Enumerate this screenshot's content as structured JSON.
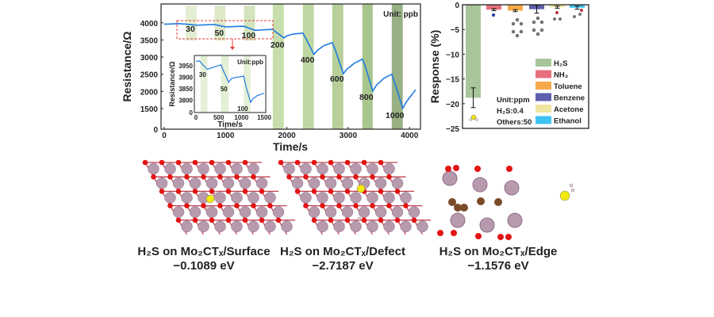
{
  "chart_data": [
    {
      "type": "line",
      "xlabel": "Time/s",
      "ylabel": "Resistance/Ω",
      "xlim": [
        0,
        4100
      ],
      "ylim": [
        0,
        4530
      ],
      "y_axis_break": [
        0,
        1500
      ],
      "xticks": [
        "0",
        "1000",
        "2000",
        "3000",
        "4000"
      ],
      "yticks": [
        "0",
        "1500",
        "2000",
        "2500",
        "3000",
        "3500",
        "4000"
      ],
      "unit_label": "Unit: ppb",
      "series": [
        {
          "name": "Resistance",
          "color": "#1e7be0",
          "x": [
            0,
            60,
            230,
            350,
            530,
            820,
            1000,
            1300,
            1480,
            1770,
            1800,
            1950,
            2000,
            2100,
            2260,
            2300,
            2440,
            2500,
            2600,
            2740,
            2780,
            2920,
            2980,
            3100,
            3230,
            3270,
            3400,
            3460,
            3580,
            3710,
            3750,
            3890,
            3950,
            4100
          ],
          "y": [
            3960,
            3960,
            3975,
            3960,
            3930,
            3950,
            3880,
            3900,
            3780,
            3810,
            3760,
            3560,
            3620,
            3670,
            3700,
            3580,
            3080,
            3200,
            3330,
            3420,
            3260,
            2520,
            2650,
            2820,
            2940,
            2780,
            2010,
            2180,
            2380,
            2500,
            2300,
            1510,
            1700,
            2050
          ]
        }
      ],
      "exposures": [
        {
          "label": "30",
          "start": 350,
          "end": 530,
          "color": "#e3eed3"
        },
        {
          "label": "50",
          "start": 820,
          "end": 1000,
          "color": "#dde9c9"
        },
        {
          "label": "100",
          "start": 1300,
          "end": 1480,
          "color": "#d3e5bd"
        },
        {
          "label": "200",
          "start": 1770,
          "end": 1950,
          "color": "#c6deab"
        },
        {
          "label": "400",
          "start": 2260,
          "end": 2440,
          "color": "#bfd8a3"
        },
        {
          "label": "600",
          "start": 2740,
          "end": 2920,
          "color": "#b7d09a"
        },
        {
          "label": "800",
          "start": 3230,
          "end": 3400,
          "color": "#a9c58e"
        },
        {
          "label": "1000",
          "start": 3710,
          "end": 3890,
          "color": "#97b084"
        }
      ]
    },
    {
      "type": "line",
      "title": "inset",
      "xlabel": "Time/s",
      "ylabel": "Resistance/Ω",
      "xlim": [
        0,
        1500
      ],
      "xticks": [
        "0",
        "500",
        "1000",
        "1500"
      ],
      "yticks": [
        "0",
        "3800",
        "3850",
        "3900",
        "3950"
      ],
      "unit_label": "Unit:ppb",
      "series": [
        {
          "name": "Resistance",
          "color": "#1e7be0",
          "x": [
            0,
            80,
            150,
            250,
            400,
            550,
            600,
            720,
            780,
            900,
            1050,
            1100,
            1200,
            1250,
            1350,
            1500
          ],
          "y": [
            3970,
            3972,
            3955,
            3935,
            3945,
            3955,
            3930,
            3878,
            3895,
            3900,
            3905,
            3860,
            3790,
            3805,
            3820,
            3830
          ]
        }
      ],
      "exposures": [
        {
          "label": "30",
          "start": 100,
          "end": 250
        },
        {
          "label": "50",
          "start": 550,
          "end": 720
        },
        {
          "label": "100",
          "start": 1050,
          "end": 1200
        }
      ]
    },
    {
      "type": "bar",
      "ylabel": "Response (%)",
      "ylim": [
        -25,
        0
      ],
      "yticks": [
        "0",
        "-5",
        "-10",
        "-15",
        "-20",
        "-25"
      ],
      "categories": [
        "H₂S",
        "NH₃",
        "Toluene",
        "Benzene",
        "Acetone",
        "Ethanol"
      ],
      "values": [
        -18.8,
        -1.0,
        -1.2,
        -0.9,
        -0.5,
        -0.6
      ],
      "errors": [
        2.0,
        0.2,
        0.2,
        0.8,
        0.2,
        0.3
      ],
      "colors": [
        "#a9c59b",
        "#e8707e",
        "#f6a94a",
        "#5d5fae",
        "#efe6a0",
        "#3ec2f0"
      ],
      "legend_position": "bottom-right",
      "notes": [
        "Unit:ppm",
        "H₂S:0.4",
        "Others:50"
      ]
    }
  ],
  "structures": [
    {
      "title": "H₂S on Mo₂CTₓ/Surface",
      "energy": "−0.1089 eV"
    },
    {
      "title": "H₂S on Mo₂CTₓ/Defect",
      "energy": "−2.7187 eV"
    },
    {
      "title": "H₂S on Mo₂CTₓ/Edge",
      "energy": "−1.1576 eV"
    }
  ]
}
